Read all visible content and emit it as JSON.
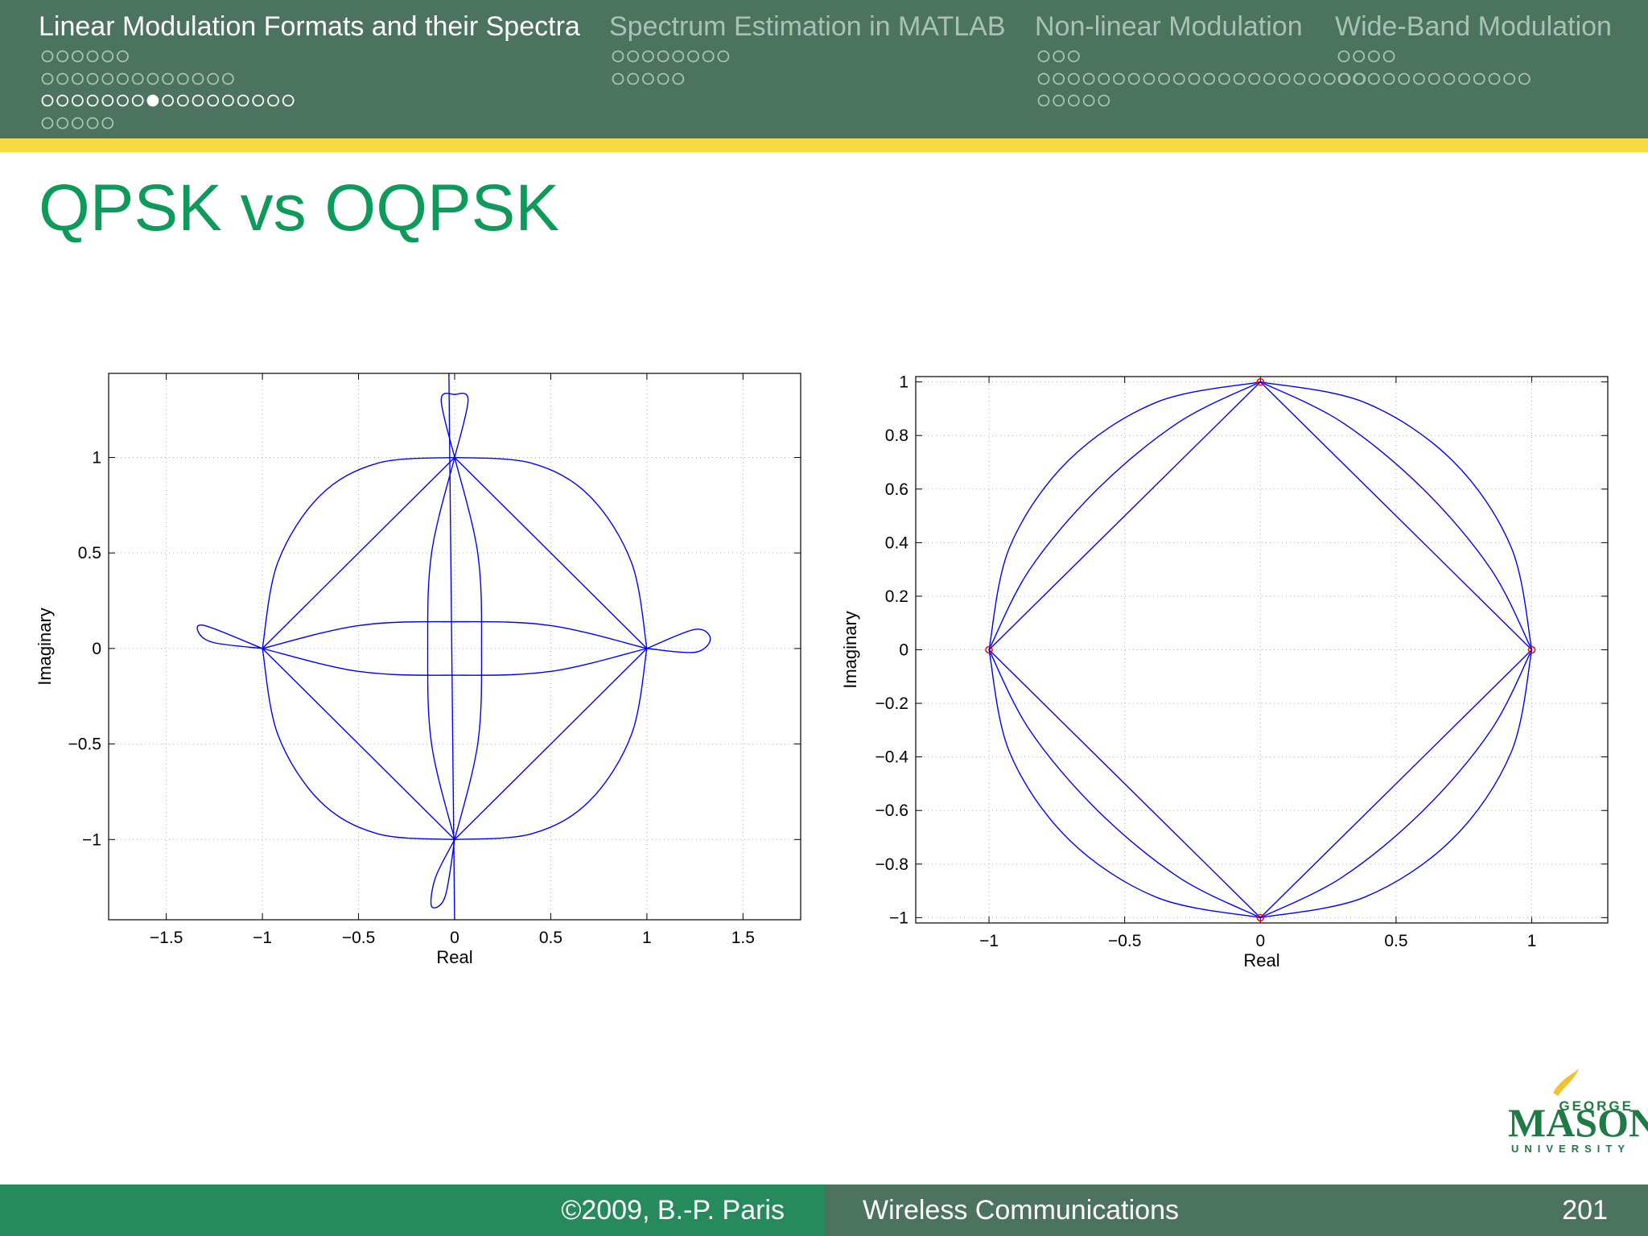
{
  "nav": {
    "sections": [
      "Linear Modulation Formats and their Spectra",
      "Spectrum Estimation in MATLAB",
      "Non-linear Modulation",
      "Wide-Band Modulation"
    ]
  },
  "title": "QPSK vs OQPSK",
  "chart_data": [
    {
      "type": "line",
      "xlabel": "Real",
      "ylabel": "Imaginary",
      "grid": true,
      "xlim": [
        -1.8,
        1.8
      ],
      "ylim": [
        -1.42,
        1.44
      ],
      "xticks": [
        {
          "value": -1.5,
          "label": "−1.5"
        },
        {
          "value": -1,
          "label": "−1"
        },
        {
          "value": -0.5,
          "label": "−0.5"
        },
        0,
        0.5,
        1,
        1.5
      ],
      "yticks": [
        {
          "value": -1,
          "label": "−1"
        },
        {
          "value": -0.5,
          "label": "−0.5"
        },
        0,
        0.5,
        1
      ],
      "series": [
        {
          "color": "#0000ff",
          "x": [
            1,
            0.92,
            0.7,
            0.4,
            0
          ],
          "values": [
            0,
            0.45,
            0.8,
            0.97,
            1
          ]
        },
        {
          "color": "#0000ff",
          "x": [
            -1,
            -0.92,
            -0.7,
            -0.4,
            0
          ],
          "values": [
            0,
            0.45,
            0.8,
            0.97,
            1
          ]
        },
        {
          "color": "#0000ff",
          "x": [
            -1,
            -0.92,
            -0.7,
            -0.4,
            0
          ],
          "values": [
            0,
            -0.45,
            -0.8,
            -0.97,
            -1
          ]
        },
        {
          "color": "#0000ff",
          "x": [
            1,
            0.92,
            0.7,
            0.4,
            0
          ],
          "values": [
            0,
            -0.45,
            -0.8,
            -0.97,
            -1
          ]
        },
        {
          "color": "#0000ff",
          "x": [
            1,
            0
          ],
          "values": [
            0,
            1
          ]
        },
        {
          "color": "#0000ff",
          "x": [
            -1,
            0
          ],
          "values": [
            0,
            1
          ]
        },
        {
          "color": "#0000ff",
          "x": [
            -1,
            0
          ],
          "values": [
            0,
            -1
          ]
        },
        {
          "color": "#0000ff",
          "x": [
            1,
            0
          ],
          "values": [
            0,
            -1
          ]
        },
        {
          "color": "#0000ff",
          "x": [
            -1,
            -0.5,
            0,
            0.5,
            1
          ],
          "values": [
            0,
            0.12,
            0.14,
            0.12,
            0
          ]
        },
        {
          "color": "#0000ff",
          "x": [
            -1,
            -0.5,
            0,
            0.5,
            1
          ],
          "values": [
            0,
            -0.12,
            -0.14,
            -0.12,
            0
          ]
        },
        {
          "color": "#0000ff",
          "x": [
            0,
            0.12,
            0.14,
            0.12,
            0
          ],
          "values": [
            1,
            0.5,
            0,
            -0.5,
            -1
          ]
        },
        {
          "color": "#0000ff",
          "x": [
            0,
            -0.12,
            -0.14,
            -0.12,
            0
          ],
          "values": [
            1,
            0.5,
            0,
            -0.5,
            -1
          ]
        },
        {
          "color": "#0000ff",
          "x": [
            1,
            1.25,
            1.33,
            1.25,
            1
          ],
          "values": [
            0,
            0.1,
            0.05,
            -0.02,
            0
          ]
        },
        {
          "color": "#0000ff",
          "x": [
            -1,
            -1.3,
            -1.33,
            -1.25,
            -1
          ],
          "values": [
            0,
            0.12,
            0.08,
            0.03,
            0
          ]
        },
        {
          "color": "#0000ff",
          "x": [
            0,
            -0.07,
            0,
            0.07,
            0
          ],
          "values": [
            1,
            1.3,
            1.33,
            1.3,
            1
          ]
        },
        {
          "color": "#0000ff",
          "x": [
            0,
            -0.1,
            -0.12,
            -0.05,
            0
          ],
          "values": [
            -1,
            -1.2,
            -1.35,
            -1.3,
            -1
          ]
        },
        {
          "color": "#0000ff",
          "x": [
            -0.03,
            0
          ],
          "values": [
            1.45,
            -1.45
          ]
        }
      ]
    },
    {
      "type": "line",
      "xlabel": "Real",
      "ylabel": "Imaginary",
      "grid": true,
      "xlim": [
        -1.27,
        1.28
      ],
      "ylim": [
        -1.02,
        1.02
      ],
      "xticks": [
        {
          "value": -1,
          "label": "−1"
        },
        {
          "value": -0.5,
          "label": "−0.5"
        },
        0,
        0.5,
        1
      ],
      "yticks": [
        {
          "value": -1,
          "label": "−1"
        },
        {
          "value": -0.8,
          "label": "−0.8"
        },
        {
          "value": -0.6,
          "label": "−0.6"
        },
        {
          "value": -0.4,
          "label": "−0.4"
        },
        {
          "value": -0.2,
          "label": "−0.2"
        },
        0,
        0.2,
        0.4,
        0.6,
        0.8,
        1
      ],
      "series": [
        {
          "color": "#0000ff",
          "x": [
            1,
            0.924,
            0.707,
            0.383,
            0
          ],
          "values": [
            0,
            0.383,
            0.707,
            0.924,
            1
          ]
        },
        {
          "color": "#0000ff",
          "x": [
            1,
            0.85,
            0.6,
            0.3,
            0
          ],
          "values": [
            0,
            0.3,
            0.6,
            0.85,
            1
          ]
        },
        {
          "color": "#0000ff",
          "x": [
            1,
            0
          ],
          "values": [
            0,
            1
          ]
        },
        {
          "color": "#0000ff",
          "x": [
            -1,
            -0.924,
            -0.707,
            -0.383,
            0
          ],
          "values": [
            0,
            0.383,
            0.707,
            0.924,
            1
          ]
        },
        {
          "color": "#0000ff",
          "x": [
            -1,
            -0.85,
            -0.6,
            -0.3,
            0
          ],
          "values": [
            0,
            0.3,
            0.6,
            0.85,
            1
          ]
        },
        {
          "color": "#0000ff",
          "x": [
            -1,
            0
          ],
          "values": [
            0,
            1
          ]
        },
        {
          "color": "#0000ff",
          "x": [
            -1,
            -0.924,
            -0.707,
            -0.383,
            0
          ],
          "values": [
            0,
            -0.383,
            -0.707,
            -0.924,
            -1
          ]
        },
        {
          "color": "#0000ff",
          "x": [
            -1,
            -0.85,
            -0.6,
            -0.3,
            0
          ],
          "values": [
            0,
            -0.3,
            -0.6,
            -0.85,
            -1
          ]
        },
        {
          "color": "#0000ff",
          "x": [
            -1,
            0
          ],
          "values": [
            0,
            -1
          ]
        },
        {
          "color": "#0000ff",
          "x": [
            1,
            0.924,
            0.707,
            0.383,
            0
          ],
          "values": [
            0,
            -0.383,
            -0.707,
            -0.924,
            -1
          ]
        },
        {
          "color": "#0000ff",
          "x": [
            1,
            0.85,
            0.6,
            0.3,
            0
          ],
          "values": [
            0,
            -0.3,
            -0.6,
            -0.85,
            -1
          ]
        },
        {
          "color": "#0000ff",
          "x": [
            1,
            0
          ],
          "values": [
            0,
            -1
          ]
        },
        {
          "color": "#ff0000",
          "marker": "circle",
          "x": [
            1,
            0,
            -1,
            0
          ],
          "values": [
            0,
            1,
            0,
            -1
          ]
        }
      ]
    }
  ],
  "footer": {
    "left": "©2009, B.-P. Paris",
    "center": "Wireless Communications",
    "page": "201"
  },
  "logo": {
    "top": "GEORGE",
    "main": "MASON",
    "bottom": "UNIVERSITY"
  }
}
